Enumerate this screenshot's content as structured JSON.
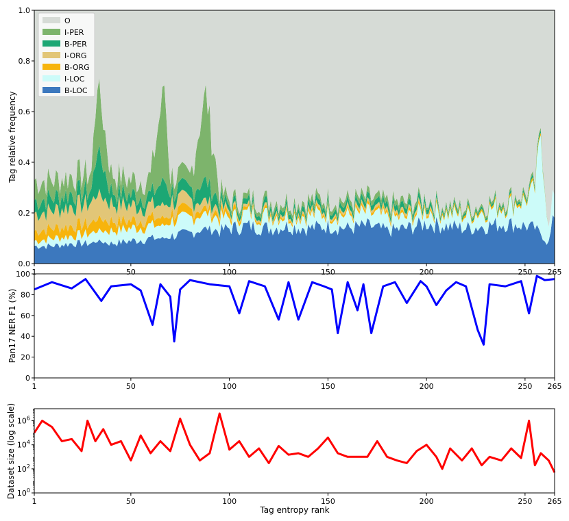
{
  "chart_data": [
    {
      "type": "area",
      "stacked": true,
      "ylabel": "Tag relative frequency",
      "xlabel": "",
      "xlim": [
        1,
        265
      ],
      "ylim": [
        0,
        1.0
      ],
      "xticks": [
        1,
        50,
        100,
        150,
        200,
        250,
        265
      ],
      "yticks": [
        "0.0",
        "0.2",
        "0.4",
        "0.6",
        "0.8",
        "1.0"
      ],
      "legend_position": "top-left",
      "x_anchor": [
        1,
        10,
        20,
        30,
        33,
        40,
        50,
        60,
        67,
        70,
        80,
        88,
        95,
        100,
        110,
        120,
        130,
        140,
        150,
        160,
        170,
        180,
        190,
        200,
        210,
        220,
        230,
        240,
        250,
        255,
        258,
        262,
        265
      ],
      "series": [
        {
          "name": "B-LOC",
          "color": "#3c78be",
          "values": [
            0.07,
            0.07,
            0.08,
            0.08,
            0.09,
            0.08,
            0.09,
            0.1,
            0.1,
            0.11,
            0.12,
            0.14,
            0.13,
            0.14,
            0.15,
            0.14,
            0.15,
            0.14,
            0.15,
            0.14,
            0.15,
            0.13,
            0.14,
            0.16,
            0.15,
            0.14,
            0.15,
            0.16,
            0.15,
            0.14,
            0.12,
            0.08,
            0.2
          ]
        },
        {
          "name": "I-LOC",
          "color": "#ccfbf9",
          "values": [
            0.02,
            0.03,
            0.03,
            0.04,
            0.04,
            0.05,
            0.05,
            0.05,
            0.05,
            0.06,
            0.06,
            0.06,
            0.05,
            0.04,
            0.05,
            0.05,
            0.04,
            0.05,
            0.05,
            0.05,
            0.05,
            0.05,
            0.04,
            0.05,
            0.05,
            0.05,
            0.06,
            0.07,
            0.1,
            0.15,
            0.4,
            0.05,
            0.1
          ]
        },
        {
          "name": "B-ORG",
          "color": "#f7b40c",
          "values": [
            0.04,
            0.04,
            0.04,
            0.04,
            0.05,
            0.04,
            0.03,
            0.03,
            0.03,
            0.03,
            0.03,
            0.02,
            0.02,
            0.02,
            0.01,
            0.01,
            0.01,
            0.01,
            0.01,
            0.01,
            0.01,
            0.01,
            0.01,
            0.01,
            0.01,
            0.01,
            0.01,
            0.01,
            0.01,
            0.01,
            0.01,
            0.0,
            0.0
          ]
        },
        {
          "name": "I-ORG",
          "color": "#e2c677",
          "values": [
            0.07,
            0.07,
            0.08,
            0.08,
            0.1,
            0.07,
            0.06,
            0.05,
            0.05,
            0.05,
            0.04,
            0.03,
            0.02,
            0.01,
            0.01,
            0.01,
            0.01,
            0.01,
            0.01,
            0.01,
            0.01,
            0.01,
            0.01,
            0.01,
            0.0,
            0.0,
            0.0,
            0.0,
            0.0,
            0.0,
            0.0,
            0.0,
            0.0
          ]
        },
        {
          "name": "B-PER",
          "color": "#1ca774",
          "values": [
            0.05,
            0.05,
            0.05,
            0.05,
            0.18,
            0.05,
            0.04,
            0.04,
            0.1,
            0.04,
            0.04,
            0.08,
            0.03,
            0.02,
            0.02,
            0.02,
            0.02,
            0.02,
            0.02,
            0.02,
            0.02,
            0.02,
            0.02,
            0.02,
            0.01,
            0.01,
            0.01,
            0.01,
            0.01,
            0.01,
            0.01,
            0.0,
            0.0
          ]
        },
        {
          "name": "I-PER",
          "color": "#7db46c",
          "values": [
            0.08,
            0.07,
            0.07,
            0.07,
            0.27,
            0.07,
            0.06,
            0.07,
            0.38,
            0.06,
            0.05,
            0.35,
            0.04,
            0.02,
            0.02,
            0.02,
            0.02,
            0.02,
            0.02,
            0.02,
            0.02,
            0.02,
            0.02,
            0.01,
            0.01,
            0.01,
            0.01,
            0.01,
            0.01,
            0.01,
            0.01,
            0.0,
            0.0
          ]
        },
        {
          "name": "O",
          "color": "#d6dbd6",
          "values": [
            0.67,
            0.67,
            0.65,
            0.64,
            0.27,
            0.64,
            0.67,
            0.66,
            0.29,
            0.65,
            0.66,
            0.32,
            0.71,
            0.75,
            0.74,
            0.75,
            0.75,
            0.75,
            0.74,
            0.75,
            0.74,
            0.76,
            0.76,
            0.74,
            0.77,
            0.78,
            0.76,
            0.74,
            0.72,
            0.68,
            0.45,
            0.87,
            0.7
          ]
        }
      ]
    },
    {
      "type": "line",
      "ylabel": "Pan17 NER F1 (%)",
      "xlabel": "",
      "xlim": [
        1,
        265
      ],
      "ylim": [
        0,
        100
      ],
      "xticks": [
        1,
        50,
        100,
        150,
        200,
        250,
        265
      ],
      "yticks": [
        "0",
        "20",
        "40",
        "60",
        "80",
        "100"
      ],
      "series": [
        {
          "name": "",
          "color": "#0000ff",
          "x": [
            1,
            10,
            20,
            27,
            35,
            40,
            50,
            55,
            61,
            65,
            70,
            72,
            75,
            80,
            90,
            100,
            105,
            110,
            118,
            125,
            130,
            135,
            142,
            148,
            152,
            155,
            160,
            165,
            168,
            172,
            178,
            184,
            190,
            197,
            200,
            205,
            210,
            215,
            220,
            226,
            229,
            232,
            240,
            248,
            252,
            256,
            260,
            265
          ],
          "values": [
            85,
            92,
            86,
            95,
            74,
            88,
            90,
            84,
            51,
            90,
            78,
            35,
            85,
            94,
            90,
            88,
            62,
            93,
            88,
            56,
            92,
            56,
            92,
            88,
            85,
            43,
            92,
            65,
            90,
            43,
            88,
            92,
            72,
            93,
            88,
            70,
            84,
            92,
            88,
            46,
            32,
            90,
            88,
            93,
            62,
            98,
            94,
            95
          ]
        }
      ]
    },
    {
      "type": "line",
      "ylabel": "Dataset size (log scale)",
      "xlabel": "Tag entropy rank",
      "xscale": "linear",
      "yscale": "log",
      "xlim": [
        1,
        265
      ],
      "ylim": [
        1,
        10000000
      ],
      "xticks": [
        1,
        50,
        100,
        150,
        200,
        250,
        265
      ],
      "yticks": [
        "10^0",
        "10^2",
        "10^4",
        "10^6"
      ],
      "series": [
        {
          "name": "",
          "color": "#ff0000",
          "x": [
            1,
            5,
            10,
            15,
            20,
            25,
            28,
            32,
            36,
            40,
            45,
            50,
            55,
            60,
            65,
            70,
            75,
            80,
            85,
            90,
            95,
            100,
            105,
            110,
            115,
            120,
            125,
            130,
            135,
            140,
            145,
            150,
            155,
            160,
            165,
            170,
            175,
            180,
            185,
            190,
            195,
            200,
            205,
            208,
            212,
            218,
            223,
            228,
            232,
            238,
            243,
            248,
            252,
            255,
            258,
            262,
            265
          ],
          "values": [
            100000,
            1000000,
            300000,
            20000,
            30000,
            3000,
            1000000,
            20000,
            200000,
            10000,
            20000,
            500,
            60000,
            2000,
            20000,
            3000,
            1500000,
            10000,
            500,
            2000,
            4000000,
            4000,
            20000,
            1000,
            5000,
            300,
            8000,
            1500,
            2000,
            1000,
            5000,
            40000,
            2000,
            1000,
            1000,
            1000,
            20000,
            1000,
            500,
            300,
            3000,
            10000,
            1000,
            100,
            5000,
            500,
            5000,
            200,
            1000,
            500,
            5000,
            800,
            1000000,
            200,
            2000,
            500,
            50
          ]
        }
      ]
    }
  ]
}
